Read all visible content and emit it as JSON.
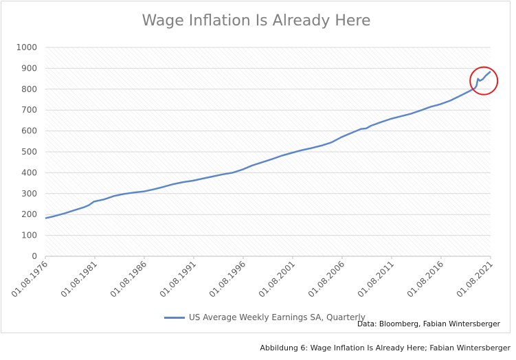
{
  "chart_data": {
    "type": "line",
    "title": "Wage Inflation Is Already Here",
    "xlabel": "",
    "ylabel": "",
    "ylim": [
      0,
      1000
    ],
    "yticks": [
      0,
      100,
      200,
      300,
      400,
      500,
      600,
      700,
      800,
      900,
      1000
    ],
    "xticks": [
      "01.08.1976",
      "01.08.1981",
      "01.08.1986",
      "01.08.1991",
      "01.08.1996",
      "01.08.2001",
      "01.08.2006",
      "01.08.2011",
      "01.08.2016",
      "01.08.2021"
    ],
    "x_year_range": [
      1976.58,
      2021.58
    ],
    "grid": true,
    "legend_position": "bottom",
    "series": [
      {
        "name": "US Average Weekly Earnings SA, Quarterly",
        "color": "#5b87c9",
        "points": [
          [
            1976.58,
            182
          ],
          [
            1977.5,
            192
          ],
          [
            1978.5,
            205
          ],
          [
            1979.5,
            220
          ],
          [
            1980.5,
            235
          ],
          [
            1981.0,
            245
          ],
          [
            1981.5,
            262
          ],
          [
            1982.5,
            272
          ],
          [
            1983.5,
            288
          ],
          [
            1984.5,
            298
          ],
          [
            1985.5,
            305
          ],
          [
            1986.5,
            310
          ],
          [
            1987.5,
            320
          ],
          [
            1988.5,
            332
          ],
          [
            1989.5,
            345
          ],
          [
            1990.5,
            355
          ],
          [
            1991.5,
            362
          ],
          [
            1992.5,
            372
          ],
          [
            1993.5,
            382
          ],
          [
            1994.5,
            392
          ],
          [
            1995.5,
            400
          ],
          [
            1996.5,
            415
          ],
          [
            1997.5,
            435
          ],
          [
            1998.5,
            450
          ],
          [
            1999.5,
            465
          ],
          [
            2000.5,
            482
          ],
          [
            2001.5,
            495
          ],
          [
            2002.5,
            508
          ],
          [
            2003.5,
            518
          ],
          [
            2004.5,
            530
          ],
          [
            2005.5,
            545
          ],
          [
            2006.5,
            570
          ],
          [
            2007.5,
            590
          ],
          [
            2008.5,
            610
          ],
          [
            2009.0,
            612
          ],
          [
            2009.5,
            625
          ],
          [
            2010.5,
            642
          ],
          [
            2011.5,
            658
          ],
          [
            2012.5,
            670
          ],
          [
            2013.5,
            682
          ],
          [
            2014.5,
            698
          ],
          [
            2015.5,
            715
          ],
          [
            2016.5,
            728
          ],
          [
            2017.5,
            745
          ],
          [
            2018.5,
            768
          ],
          [
            2019.5,
            792
          ],
          [
            2020.0,
            805
          ],
          [
            2020.15,
            815
          ],
          [
            2020.3,
            850
          ],
          [
            2020.5,
            840
          ],
          [
            2020.8,
            848
          ],
          [
            2021.1,
            865
          ],
          [
            2021.58,
            885
          ]
        ]
      }
    ],
    "annotations": [
      {
        "type": "circle",
        "color": "#e02020",
        "x": 2020.9,
        "y": 840
      }
    ]
  },
  "source_text": "Data: Bloomberg, Fabian Wintersberger",
  "caption": "Abbildung 6: Wage Inflation Is Already Here; Fabian Wintersberger"
}
